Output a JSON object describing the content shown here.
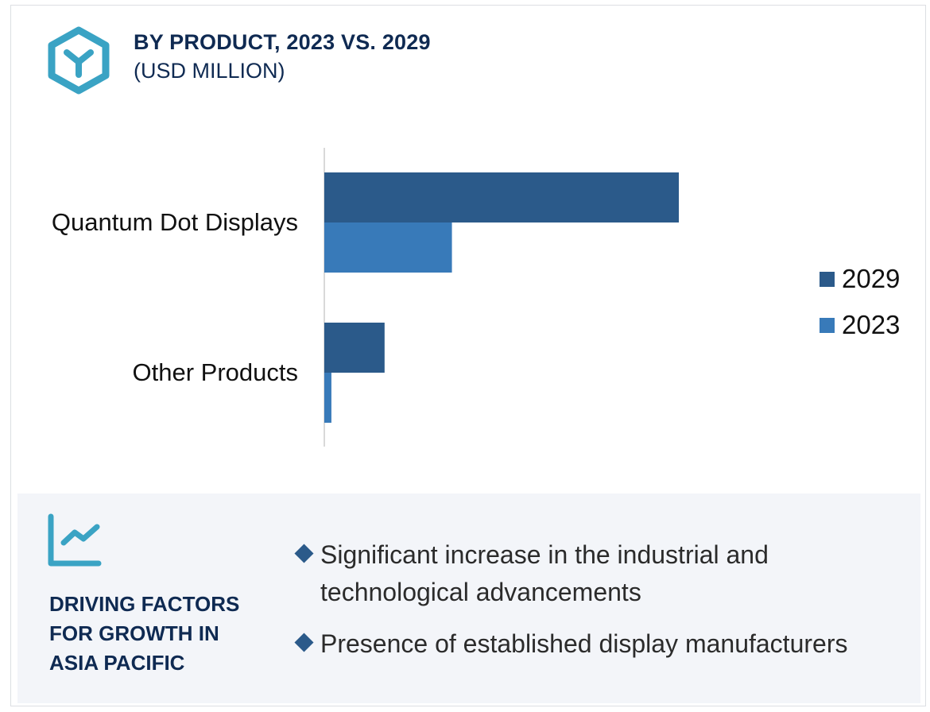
{
  "header": {
    "title": "BY PRODUCT, 2023 VS. 2029",
    "subtitle": "(USD MILLION)",
    "logo_icon": "hexagon-y-icon"
  },
  "colors": {
    "accent": "#3aa3c4",
    "heading": "#0f2a52",
    "series_2029": "#2b5a8a",
    "series_2023": "#387ab9",
    "panel_bg": "#f3f5f9"
  },
  "chart_data": {
    "type": "bar",
    "orientation": "horizontal",
    "title": "BY PRODUCT, 2023 VS. 2029",
    "subtitle": "(USD MILLION)",
    "units_note": "No axis scale shown; values are relative (Quantum Dot Displays 2029 = 100)",
    "categories": [
      "Quantum Dot Displays",
      "Other Products"
    ],
    "series": [
      {
        "name": "2029",
        "color": "#2b5a8a",
        "values": [
          100,
          17
        ]
      },
      {
        "name": "2023",
        "color": "#387ab9",
        "values": [
          36,
          2
        ]
      }
    ],
    "xlabel": "",
    "ylabel": "",
    "xlim": [
      0,
      100
    ],
    "grid": false,
    "legend": {
      "position": "right",
      "entries": [
        "2029",
        "2023"
      ]
    }
  },
  "panel": {
    "icon": "trend-chart-icon",
    "heading_lines": [
      "DRIVING FACTORS",
      "FOR GROWTH IN",
      "ASIA PACIFIC"
    ],
    "bullets": [
      "Significant increase in the industrial and technological advancements",
      "Presence of established display manufacturers"
    ]
  }
}
